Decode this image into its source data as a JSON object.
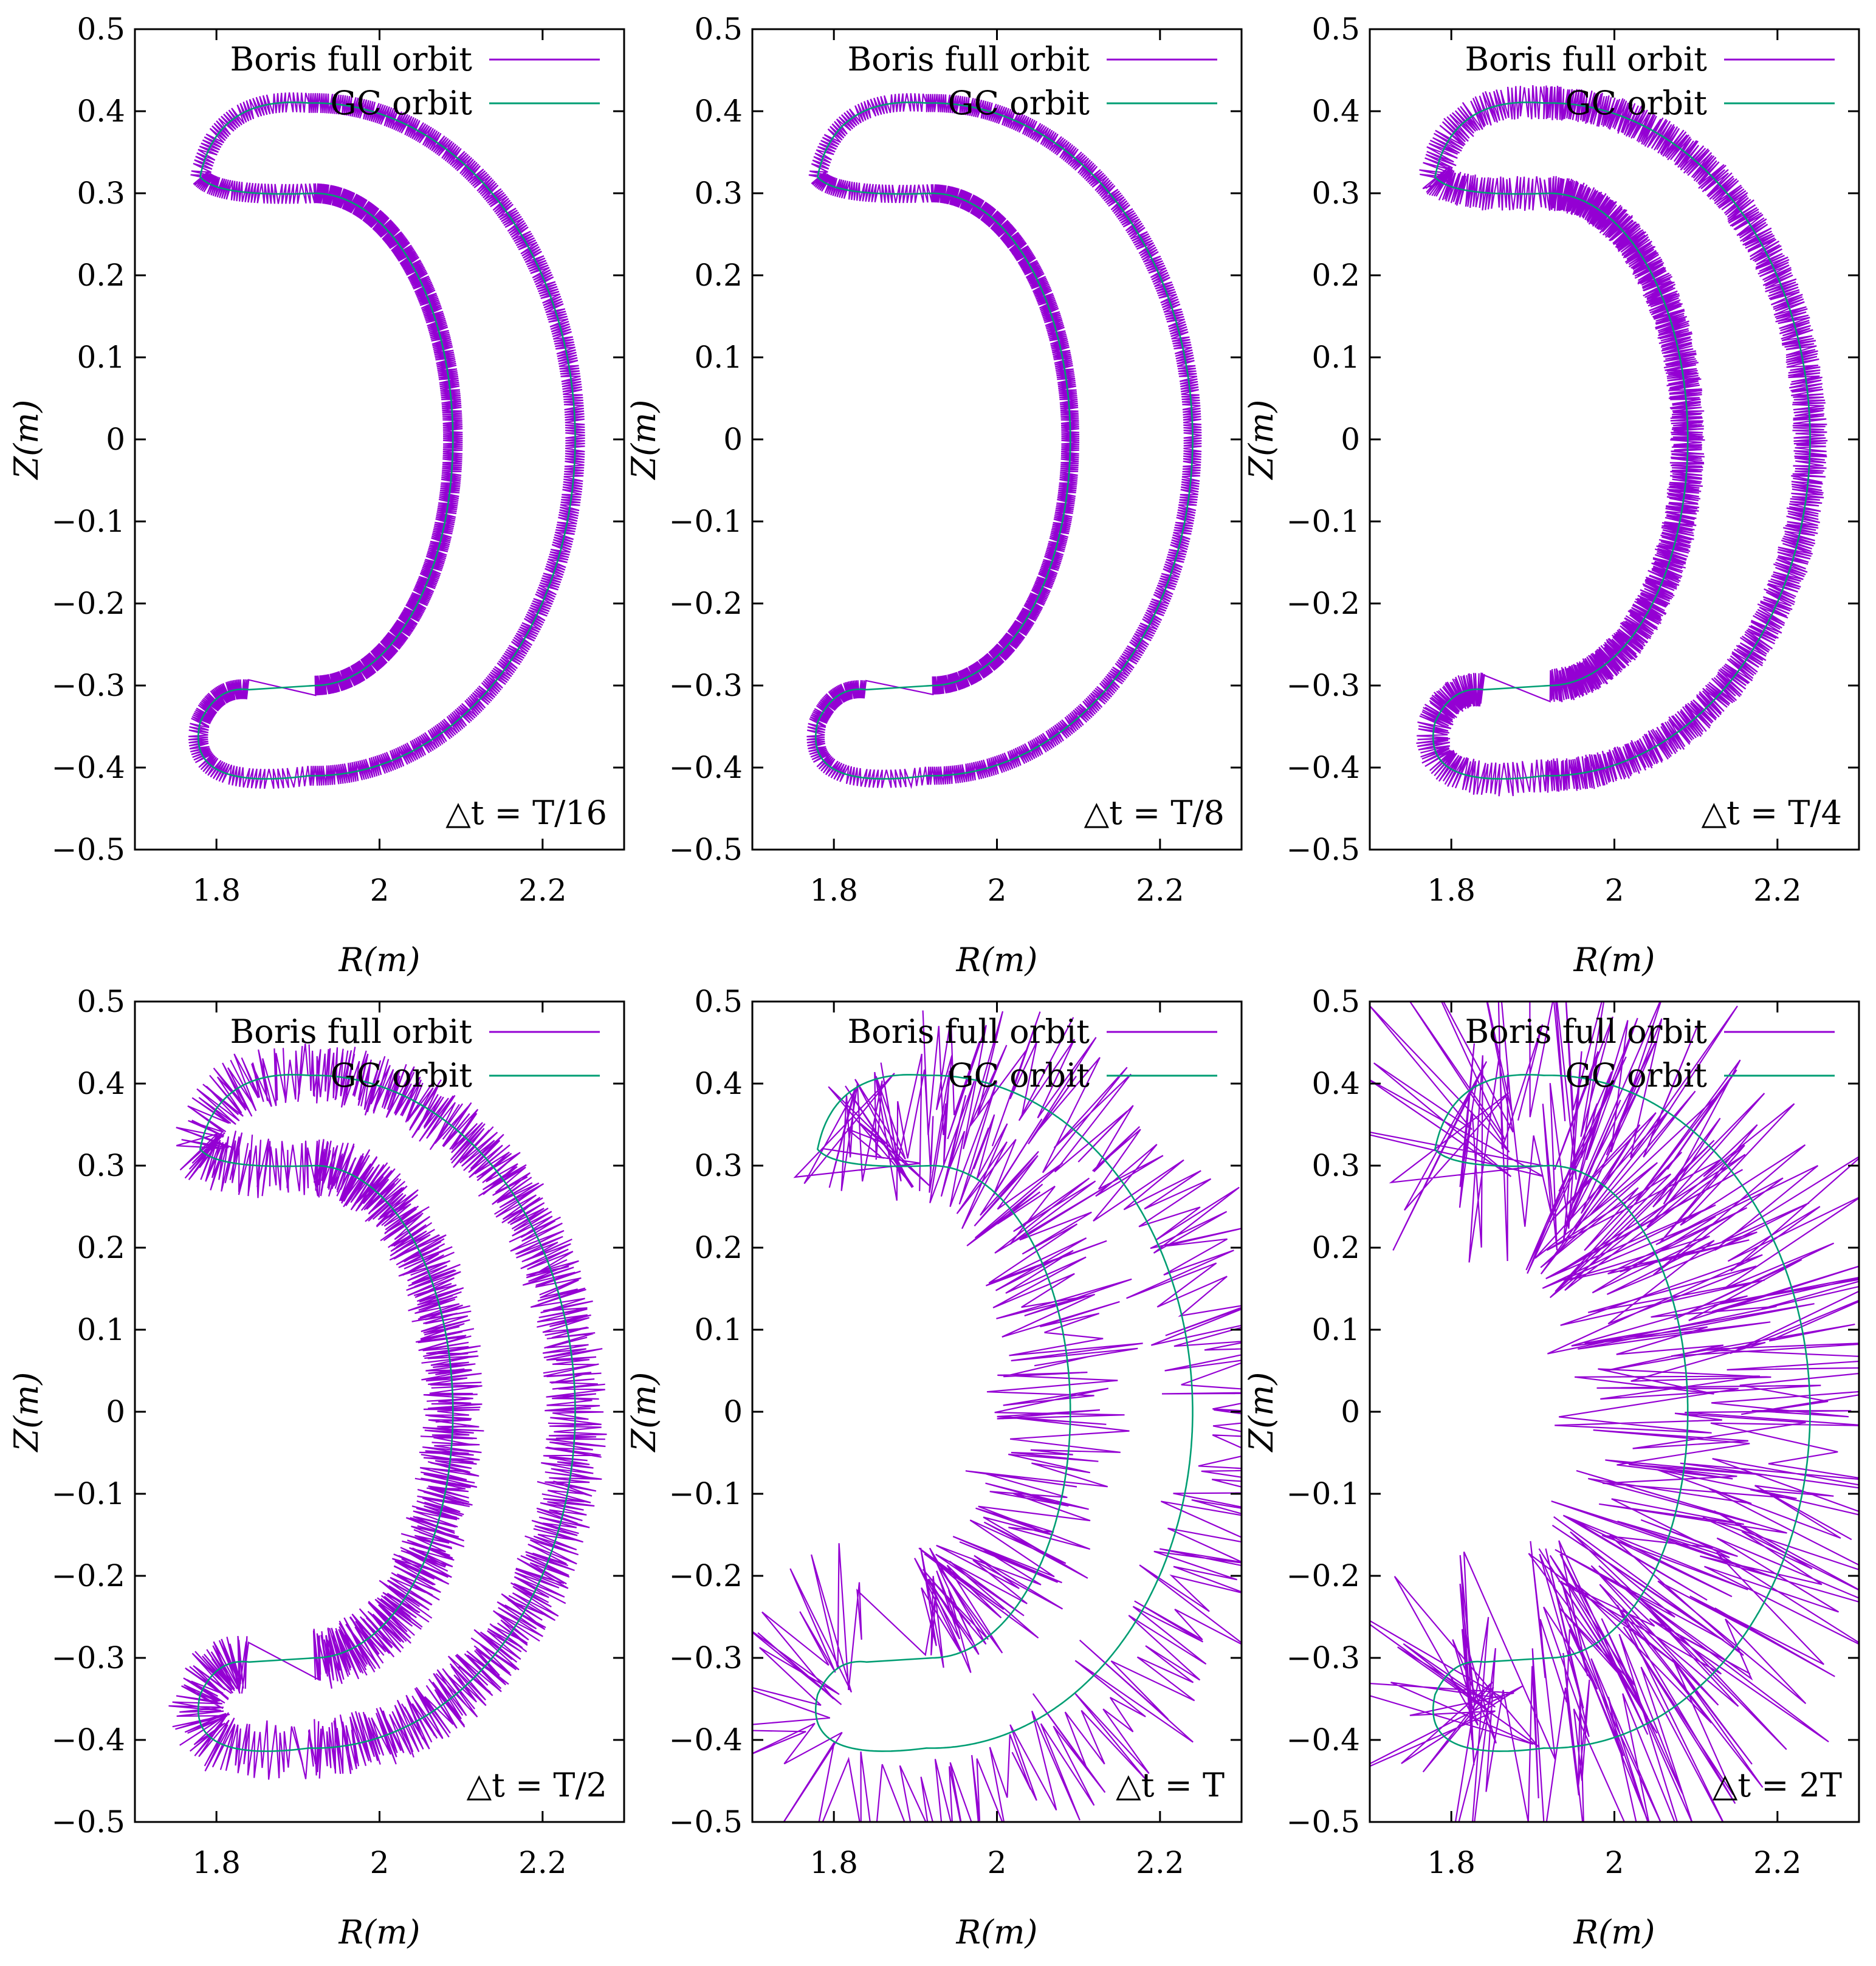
{
  "chart_data": [
    {
      "type": "line",
      "annotation": "△t = T/16",
      "xlabel": "R(m)",
      "ylabel": "Z(m)",
      "xlim": [
        1.7,
        2.3
      ],
      "ylim": [
        -0.5,
        0.5
      ],
      "xticks": [
        "1.8",
        "2",
        "2.2"
      ],
      "xtick_values": [
        1.8,
        2.0,
        2.2
      ],
      "yticks": [
        "−0.5",
        "−0.4",
        "−0.3",
        "−0.2",
        "−0.1",
        "0",
        "0.1",
        "0.2",
        "0.3",
        "0.4",
        "0.5"
      ],
      "ytick_values": [
        -0.5,
        -0.4,
        -0.3,
        -0.2,
        -0.1,
        0,
        0.1,
        0.2,
        0.3,
        0.4,
        0.5
      ],
      "legend_placement": "top-right",
      "grid": false,
      "series": [
        {
          "name": "Boris full orbit",
          "color": "#9400d3",
          "band_width_m": 0.012,
          "spread_m": 0.0,
          "extent_m": 0.0
        },
        {
          "name": "GC orbit",
          "color": "#009e73",
          "outer_R_max": 2.24,
          "inner_R_min": 2.09,
          "tip_R": 1.78,
          "Z_max": 0.41
        }
      ]
    },
    {
      "type": "line",
      "annotation": "△t = T/8",
      "xlabel": "R(m)",
      "ylabel": "Z(m)",
      "xlim": [
        1.7,
        2.3
      ],
      "ylim": [
        -0.5,
        0.5
      ],
      "xticks": [
        "1.8",
        "2",
        "2.2"
      ],
      "xtick_values": [
        1.8,
        2.0,
        2.2
      ],
      "yticks": [
        "−0.5",
        "−0.4",
        "−0.3",
        "−0.2",
        "−0.1",
        "0",
        "0.1",
        "0.2",
        "0.3",
        "0.4",
        "0.5"
      ],
      "ytick_values": [
        -0.5,
        -0.4,
        -0.3,
        -0.2,
        -0.1,
        0,
        0.1,
        0.2,
        0.3,
        0.4,
        0.5
      ],
      "legend_placement": "top-right",
      "grid": false,
      "series": [
        {
          "name": "Boris full orbit",
          "color": "#9400d3",
          "band_width_m": 0.011,
          "spread_m": 0.0,
          "extent_m": 0.0
        },
        {
          "name": "GC orbit",
          "color": "#009e73",
          "outer_R_max": 2.24,
          "inner_R_min": 2.09,
          "tip_R": 1.78,
          "Z_max": 0.41
        }
      ]
    },
    {
      "type": "line",
      "annotation": "△t = T/4",
      "xlabel": "R(m)",
      "ylabel": "Z(m)",
      "xlim": [
        1.7,
        2.3
      ],
      "ylim": [
        -0.5,
        0.5
      ],
      "xticks": [
        "1.8",
        "2",
        "2.2"
      ],
      "xtick_values": [
        1.8,
        2.0,
        2.2
      ],
      "yticks": [
        "−0.5",
        "−0.4",
        "−0.3",
        "−0.2",
        "−0.1",
        "0",
        "0.1",
        "0.2",
        "0.3",
        "0.4",
        "0.5"
      ],
      "ytick_values": [
        -0.5,
        -0.4,
        -0.3,
        -0.2,
        -0.1,
        0,
        0.1,
        0.2,
        0.3,
        0.4,
        0.5
      ],
      "legend_placement": "top-right",
      "grid": false,
      "series": [
        {
          "name": "Boris full orbit",
          "color": "#9400d3",
          "band_width_m": 0.016,
          "spread_m": 0.004,
          "extent_m": 0.0
        },
        {
          "name": "GC orbit",
          "color": "#009e73",
          "outer_R_max": 2.24,
          "inner_R_min": 2.09,
          "tip_R": 1.78,
          "Z_max": 0.41
        }
      ]
    },
    {
      "type": "line",
      "annotation": "△t = T/2",
      "xlabel": "R(m)",
      "ylabel": "Z(m)",
      "xlim": [
        1.7,
        2.3
      ],
      "ylim": [
        -0.5,
        0.5
      ],
      "xticks": [
        "1.8",
        "2",
        "2.2"
      ],
      "xtick_values": [
        1.8,
        2.0,
        2.2
      ],
      "yticks": [
        "−0.5",
        "−0.4",
        "−0.3",
        "−0.2",
        "−0.1",
        "0",
        "0.1",
        "0.2",
        "0.3",
        "0.4",
        "0.5"
      ],
      "ytick_values": [
        -0.5,
        -0.4,
        -0.3,
        -0.2,
        -0.1,
        0,
        0.1,
        0.2,
        0.3,
        0.4,
        0.5
      ],
      "legend_placement": "top-right",
      "grid": false,
      "series": [
        {
          "name": "Boris full orbit",
          "color": "#9400d3",
          "band_width_m": 0.014,
          "spread_m": 0.018,
          "extent_m": 0.0
        },
        {
          "name": "GC orbit",
          "color": "#009e73",
          "outer_R_max": 2.24,
          "inner_R_min": 2.09,
          "tip_R": 1.78,
          "Z_max": 0.41
        }
      ]
    },
    {
      "type": "line",
      "annotation": "△t = T",
      "xlabel": "R(m)",
      "ylabel": "Z(m)",
      "xlim": [
        1.7,
        2.3
      ],
      "ylim": [
        -0.5,
        0.5
      ],
      "xticks": [
        "1.8",
        "2",
        "2.2"
      ],
      "xtick_values": [
        1.8,
        2.0,
        2.2
      ],
      "yticks": [
        "−0.5",
        "−0.4",
        "−0.3",
        "−0.2",
        "−0.1",
        "0",
        "0.1",
        "0.2",
        "0.3",
        "0.4",
        "0.5"
      ],
      "ytick_values": [
        -0.5,
        -0.4,
        -0.3,
        -0.2,
        -0.1,
        0,
        0.1,
        0.2,
        0.3,
        0.4,
        0.5
      ],
      "legend_placement": "top-right",
      "grid": false,
      "series": [
        {
          "name": "Boris full orbit",
          "color": "#9400d3",
          "band_width_m": 0.0,
          "spread_m": 0.07,
          "extent_m": 0.06
        },
        {
          "name": "GC orbit",
          "color": "#009e73",
          "outer_R_max": 2.24,
          "inner_R_min": 2.09,
          "tip_R": 1.78,
          "Z_max": 0.41
        }
      ]
    },
    {
      "type": "line",
      "annotation": "△t = 2T",
      "xlabel": "R(m)",
      "ylabel": "Z(m)",
      "xlim": [
        1.7,
        2.3
      ],
      "ylim": [
        -0.5,
        0.5
      ],
      "xticks": [
        "1.8",
        "2",
        "2.2"
      ],
      "xtick_values": [
        1.8,
        2.0,
        2.2
      ],
      "yticks": [
        "−0.5",
        "−0.4",
        "−0.3",
        "−0.2",
        "−0.1",
        "0",
        "0.1",
        "0.2",
        "0.3",
        "0.4",
        "0.5"
      ],
      "ytick_values": [
        -0.5,
        -0.4,
        -0.3,
        -0.2,
        -0.1,
        0,
        0.1,
        0.2,
        0.3,
        0.4,
        0.5
      ],
      "legend_placement": "top-right",
      "grid": false,
      "series": [
        {
          "name": "Boris full orbit",
          "color": "#9400d3",
          "band_width_m": 0.0,
          "spread_m": 0.12,
          "extent_m": 0.0
        },
        {
          "name": "GC orbit",
          "color": "#009e73",
          "outer_R_max": 2.24,
          "inner_R_min": 2.09,
          "tip_R": 1.78,
          "Z_max": 0.41
        }
      ]
    }
  ]
}
